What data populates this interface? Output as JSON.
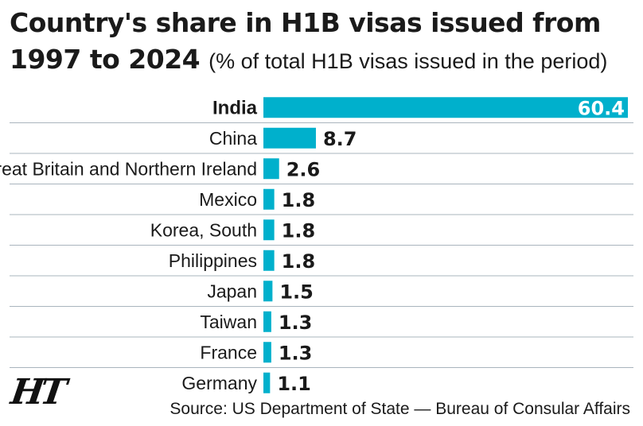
{
  "chart_data": {
    "type": "bar",
    "orientation": "horizontal",
    "title": "Country's share in H1B visas issued from 1997 to 2024",
    "subtitle": "(% of total H1B visas issued in the period)",
    "categories": [
      "India",
      "China",
      "Great Britain and Northern Ireland",
      "Mexico",
      "Korea, South",
      "Philippines",
      "Japan",
      "Taiwan",
      "France",
      "Germany"
    ],
    "values": [
      60.4,
      8.7,
      2.6,
      1.8,
      1.8,
      1.8,
      1.5,
      1.3,
      1.3,
      1.1
    ],
    "value_labels": [
      "60.4",
      "8.7",
      "2.6",
      "1.8",
      "1.8",
      "1.8",
      "1.5",
      "1.3",
      "1.3",
      "1.1"
    ],
    "xlim": [
      0,
      60.4
    ],
    "bar_color": "#00b0cc",
    "highlight_category": "India",
    "grid": "horizontal separators",
    "legend": "none"
  },
  "logo": "HT",
  "source": "Source: US Department of State — Bureau of Consular Affairs"
}
